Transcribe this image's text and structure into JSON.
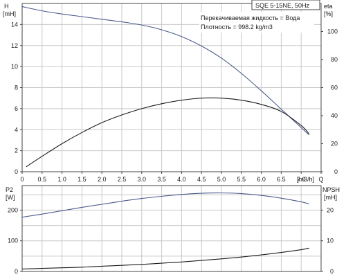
{
  "header": {
    "title": "SQE 5-15NE, 50Hz",
    "info_line_1": "Перекачиваемая жидкость = Вода",
    "info_line_2": "Плотность = 998.2 kg/m3"
  },
  "colors": {
    "head_curve": "#4a5a8a",
    "efficiency_curve": "#1a1a1a",
    "power_curve": "#4a5a8a",
    "npsh_curve": "#1a1a1a",
    "grid": "#c8c8c8",
    "frame": "#444444"
  },
  "chart_data": [
    {
      "type": "line",
      "title": "",
      "xlabel": "Q [m3/h]",
      "x_ticks": [
        "0",
        "0.5",
        "1.0",
        "1.5",
        "2.0",
        "2.5",
        "3.0",
        "3.5",
        "4.0",
        "4.5",
        "5.0",
        "5.5",
        "6.0",
        "6.5",
        "7.0",
        "Q"
      ],
      "x_tick_values": [
        0,
        0.5,
        1.0,
        1.5,
        2.0,
        2.5,
        3.0,
        3.5,
        4.0,
        4.5,
        5.0,
        5.5,
        6.0,
        6.5,
        7.0,
        7.5
      ],
      "xlim": [
        0,
        7.5
      ],
      "xunit": "[m3/h]",
      "ylabel_left": "[mH]",
      "ylabel_left_top": "H",
      "ylim_left": [
        0,
        16
      ],
      "yticks_left": [
        "0",
        "2",
        "4",
        "6",
        "8",
        "10",
        "12",
        "14"
      ],
      "ylabel_right": "[%]",
      "ylabel_right_top": "eta",
      "ylim_right": [
        0,
        120
      ],
      "yticks_right": [
        "0",
        "20",
        "40",
        "60",
        "80",
        "100"
      ],
      "grid": true,
      "series": [
        {
          "axis": "left",
          "x": [
            0,
            0.5,
            1.0,
            1.5,
            2.0,
            2.5,
            3.0,
            3.5,
            4.0,
            4.5,
            5.0,
            5.5,
            6.0,
            6.5,
            7.0,
            7.2
          ],
          "values": [
            15.7,
            15.3,
            15.0,
            14.75,
            14.5,
            14.25,
            13.95,
            13.5,
            12.85,
            11.95,
            10.8,
            9.35,
            7.7,
            5.95,
            4.2,
            3.5
          ]
        },
        {
          "axis": "right",
          "x": [
            0.1,
            0.5,
            1.0,
            1.5,
            2.0,
            2.5,
            3.0,
            3.5,
            4.0,
            4.5,
            5.0,
            5.5,
            6.0,
            6.5,
            7.0,
            7.2
          ],
          "values": [
            3.5,
            11,
            20,
            28,
            35,
            40.5,
            45,
            48.5,
            51,
            52.5,
            52.5,
            51,
            48,
            43,
            33,
            27
          ]
        }
      ]
    },
    {
      "type": "line",
      "title": "",
      "xlabel": "",
      "xlim": [
        0,
        7.5
      ],
      "ylabel_left": "[W]",
      "ylabel_left_top": "P2",
      "ylim_left": [
        0,
        280
      ],
      "yticks_left": [
        "0",
        "100",
        "200"
      ],
      "ylabel_right": "[mH]",
      "ylabel_right_top": "NPSH",
      "ylim_right": [
        0,
        28
      ],
      "yticks_right": [
        "0",
        "10",
        "20"
      ],
      "grid": true,
      "series": [
        {
          "axis": "left",
          "x": [
            0,
            0.5,
            1.0,
            1.5,
            2.0,
            2.5,
            3.0,
            3.5,
            4.0,
            4.5,
            5.0,
            5.5,
            6.0,
            6.5,
            7.0,
            7.2
          ],
          "values": [
            177,
            187,
            198,
            209,
            219,
            229,
            238,
            245,
            251,
            255,
            256,
            254,
            248,
            239,
            227,
            220
          ]
        },
        {
          "axis": "right",
          "x": [
            0,
            0.5,
            1.0,
            1.5,
            2.0,
            2.5,
            3.0,
            3.5,
            4.0,
            4.5,
            5.0,
            5.5,
            6.0,
            6.5,
            7.0,
            7.2
          ],
          "values": [
            0.8,
            1.0,
            1.2,
            1.4,
            1.7,
            2.0,
            2.3,
            2.7,
            3.1,
            3.6,
            4.1,
            4.7,
            5.4,
            6.2,
            7.1,
            7.6
          ]
        }
      ]
    }
  ]
}
